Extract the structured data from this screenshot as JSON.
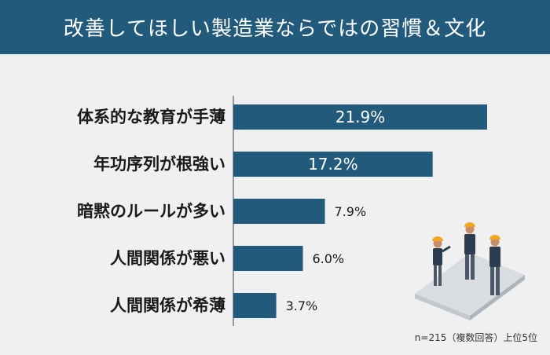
{
  "header": {
    "title": "改善してほしい製造業ならではの習慣＆文化"
  },
  "footnote": "n=215（複数回答）上位5位",
  "colors": {
    "bar": "#225a7c",
    "title_bg": "#225a7c",
    "panel": "#f0f0f0"
  },
  "chart_data": {
    "type": "bar",
    "orientation": "horizontal",
    "categories": [
      "体系的な教育が手薄",
      "年功序列が根強い",
      "暗黙のルールが多い",
      "人間関係が悪い",
      "人間関係が希薄"
    ],
    "values": [
      21.9,
      17.2,
      7.9,
      6.0,
      3.7
    ],
    "value_labels": [
      "21.9%",
      "17.2%",
      "7.9%",
      "6.0%",
      "3.7%"
    ],
    "title": "",
    "xlabel": "",
    "ylabel": "",
    "grid": false
  }
}
